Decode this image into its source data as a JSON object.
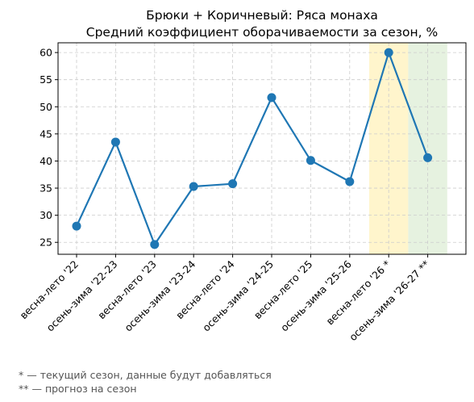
{
  "chart_data": {
    "type": "line",
    "title": [
      "Брюки + Коричневый: Ряса монаха",
      "Средний коэффициент оборачиваемости за сезон, %"
    ],
    "xlabel": "",
    "ylabel": "",
    "categories": [
      "весна-лето '22",
      "осень-зима '22-23",
      "весна-лето '23",
      "осень-зима '23-24",
      "весна-лето '24",
      "осень-зима '24-25",
      "весна-лето '25",
      "осень-зима '25-26",
      "весна-лето '26 *",
      "осень-зима '26-27 **"
    ],
    "series": [
      {
        "values": [
          28.0,
          43.5,
          24.6,
          35.3,
          35.8,
          51.7,
          40.1,
          36.2,
          60.0,
          40.6
        ],
        "color": "#1f77b4"
      }
    ],
    "ylim": [
      22.8,
      61.8
    ],
    "yticks": [
      25,
      30,
      35,
      40,
      45,
      50,
      55,
      60
    ],
    "grid": true,
    "highlights": [
      {
        "category_index": 8,
        "color": "#fff5cc"
      },
      {
        "category_index": 9,
        "color": "#e6f2e0"
      }
    ],
    "footnotes": [
      "* — текущий сезон, данные будут добавляться",
      "** — прогноз на сезон"
    ]
  }
}
